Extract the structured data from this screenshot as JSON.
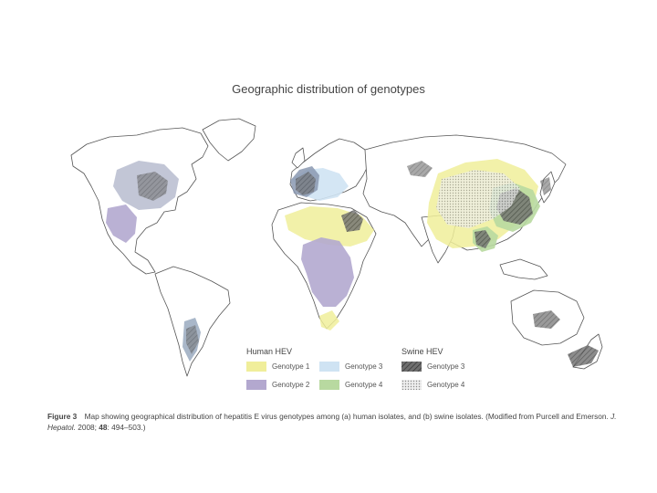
{
  "map": {
    "title": "Geographic distribution of genotypes"
  },
  "legend": {
    "human": {
      "heading": "Human HEV",
      "items": [
        {
          "label": "Genotype 1",
          "color": "#f0ee9a"
        },
        {
          "label": "Genotype 2",
          "color": "#b3a8cf"
        },
        {
          "label": "Genotype 3",
          "color": "#cfe3f3"
        },
        {
          "label": "Genotype 4",
          "color": "#b8d9a0"
        }
      ]
    },
    "swine": {
      "heading": "Swine HEV",
      "items": [
        {
          "label": "Genotype 3",
          "color": "#7a7a7a",
          "pattern": "dark-hatch"
        },
        {
          "label": "Genotype 4",
          "color": "#dcdcdc",
          "pattern": "light-dots"
        }
      ]
    }
  },
  "caption": {
    "figure_label": "Figure 3",
    "text_1": "Map showing geographical distribution of hepatitis E virus genotypes among (a) human isolates, and (b) swine isolates. (Modified from Purcell and Emerson.",
    "journal": "J. Hepatol.",
    "text_2": "2008;",
    "volume": "48",
    "text_3": ": 494–503.)"
  },
  "colors": {
    "land_outline": "#555555",
    "genotype1": "#f0ee9a",
    "genotype2": "#b3a8cf",
    "genotype3": "#cfe3f3",
    "genotype4": "#b8d9a0"
  }
}
